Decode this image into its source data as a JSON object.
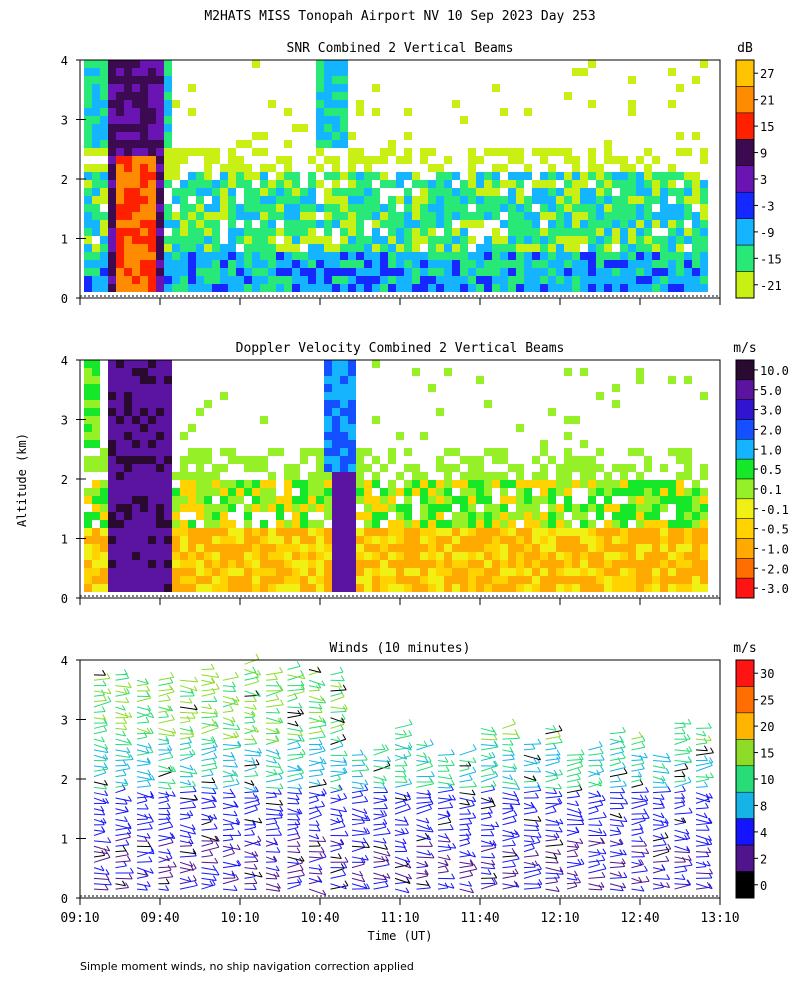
{
  "page": {
    "title": "M2HATS MISS Tonopah Airport NV  10 Sep 2023 Day 253",
    "y_axis_label": "Altitude (km)",
    "x_axis_label": "Time (UT)",
    "footnote": "Simple moment winds, no ship navigation correction applied"
  },
  "chart_data": [
    {
      "type": "heatmap",
      "title": "SNR Combined 2 Vertical Beams",
      "xlim": [
        "09:10",
        "13:10"
      ],
      "ylim": [
        0,
        4
      ],
      "y_ticks": [
        "0",
        "1",
        "2",
        "3",
        "4"
      ],
      "x_ticks": [
        "09:10",
        "09:40",
        "10:10",
        "10:40",
        "11:10",
        "11:40",
        "12:10",
        "12:40",
        "13:10"
      ],
      "x_tick_labels_shown": false,
      "colorbar": {
        "unit": "dB",
        "labels": [
          "27",
          "21",
          "15",
          "9",
          "3",
          "-3",
          "-9",
          "-15",
          "-21"
        ],
        "colors": [
          "#ffc400",
          "#ff8c00",
          "#ff2000",
          "#3c0a50",
          "#6a14b4",
          "#1428ff",
          "#14b4ff",
          "#28e878",
          "#c8f014"
        ]
      }
    },
    {
      "type": "heatmap",
      "title": "Doppler Velocity Combined 2 Vertical Beams",
      "xlim": [
        "09:10",
        "13:10"
      ],
      "ylim": [
        0,
        4
      ],
      "y_ticks": [
        "0",
        "1",
        "2",
        "3",
        "4"
      ],
      "x_ticks": [
        "09:10",
        "09:40",
        "10:10",
        "10:40",
        "11:10",
        "11:40",
        "12:10",
        "12:40",
        "13:10"
      ],
      "x_tick_labels_shown": false,
      "colorbar": {
        "unit": "m/s",
        "labels": [
          "10.0",
          "5.0",
          "3.0",
          "2.0",
          "1.0",
          "0.5",
          "0.1",
          "-0.1",
          "-0.5",
          "-1.0",
          "-2.0",
          "-3.0"
        ],
        "colors": [
          "#2a0a30",
          "#5a14a0",
          "#3014d0",
          "#1450ff",
          "#14b4ff",
          "#14e828",
          "#96f028",
          "#f0f014",
          "#ffd200",
          "#ffaa00",
          "#ff6e00",
          "#ff1414"
        ]
      }
    },
    {
      "type": "scatter",
      "title": "Winds (10 minutes)",
      "xlim": [
        "09:10",
        "13:10"
      ],
      "ylim": [
        0,
        4
      ],
      "y_ticks": [
        "0",
        "1",
        "2",
        "3",
        "4"
      ],
      "x_ticks": [
        "09:10",
        "09:40",
        "10:10",
        "10:40",
        "11:10",
        "11:40",
        "12:10",
        "12:40",
        "13:10"
      ],
      "x_tick_labels_shown": true,
      "colorbar": {
        "unit": "m/s",
        "labels": [
          "30",
          "25",
          "20",
          "15",
          "10",
          "8",
          "4",
          "2",
          "0"
        ],
        "colors": [
          "#ff1414",
          "#ff6e00",
          "#ffb400",
          "#8cdc28",
          "#28dc78",
          "#14b4e6",
          "#1414ff",
          "#50148c",
          "#000000"
        ]
      }
    }
  ]
}
